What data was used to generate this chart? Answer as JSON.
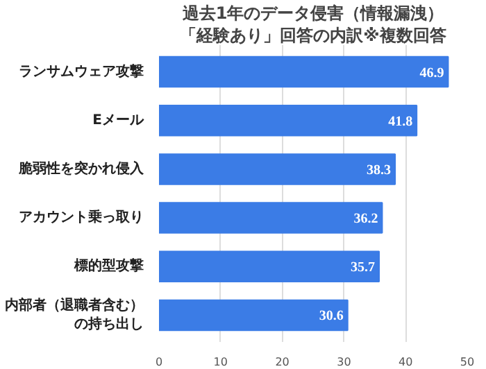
{
  "chart_data": {
    "type": "bar",
    "orientation": "horizontal",
    "title": "過去1年のデータ侵害（情報漏洩）",
    "subtitle": "「経験あり」回答の内訳※複数回答",
    "categories": [
      "ランサムウェア攻撃",
      "Eメール",
      "脆弱性を突かれ侵入",
      "アカウント乗っ取り",
      "標的型攻撃",
      "内部者（退職者含む）の持ち出し"
    ],
    "values": [
      46.9,
      41.8,
      38.3,
      36.2,
      35.7,
      30.6
    ],
    "color": "#3b7ce6",
    "xlim": [
      0,
      50
    ],
    "xticks": [
      0,
      10,
      20,
      30,
      40,
      50
    ],
    "grid": "x",
    "data_labels": true
  }
}
